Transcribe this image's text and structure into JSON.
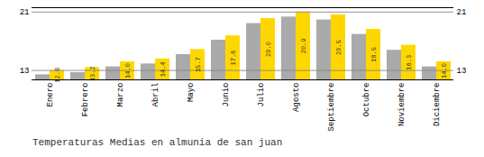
{
  "chart_data": {
    "type": "bar",
    "title": "Temperaturas Medias en almunia de san juan",
    "categories": [
      "Enero",
      "Febrero",
      "Marzo",
      "Abril",
      "Mayo",
      "Junio",
      "Julio",
      "Agosto",
      "Septiembre",
      "Octubre",
      "Noviembre",
      "Diciembre"
    ],
    "series": [
      {
        "color": "#AAAAAA",
        "values": [
          12.2,
          12.5,
          13.3,
          13.7,
          15.0,
          17.0,
          19.3,
          20.2,
          19.8,
          17.8,
          15.6,
          13.3
        ]
      },
      {
        "color": "#FFD700",
        "values": [
          12.8,
          13.2,
          14.0,
          14.4,
          15.7,
          17.6,
          20.0,
          20.9,
          20.5,
          18.5,
          16.3,
          14.0
        ],
        "data_labels": true,
        "value_labels": [
          "12.8",
          "13.2",
          "14.0",
          "14.4",
          "15.7",
          "17.6",
          "20.0",
          "20.9",
          "20.5",
          "18.5",
          "16.3",
          "14.0"
        ]
      }
    ],
    "ylim": [
      11.5,
      21.5
    ],
    "yticks": [
      12.8,
      20.9
    ],
    "grid": true
  }
}
